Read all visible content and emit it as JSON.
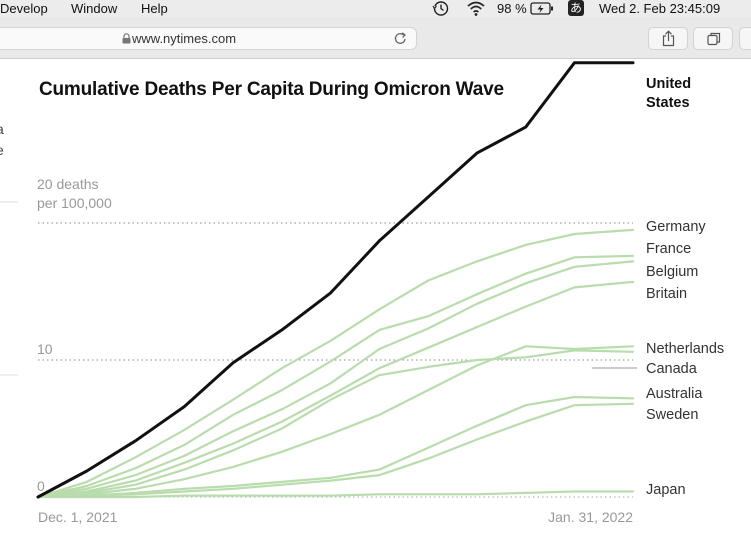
{
  "menubar": {
    "items": [
      "Develop",
      "Window",
      "Help"
    ],
    "battery_percent": "98 %",
    "input_method": "あ",
    "clock": "Wed 2. Feb  23:45:09",
    "icons": [
      "time-machine-icon",
      "wifi-icon",
      "battery-charging-icon"
    ]
  },
  "browser": {
    "url": "www.nytimes.com",
    "icons": [
      "lock-icon",
      "reload-icon",
      "share-icon",
      "tabs-icon"
    ]
  },
  "colors": {
    "us_line": "#111111",
    "other_lines": "#b9dcad",
    "gridline": "#888888"
  },
  "chart_data": {
    "type": "line",
    "title": "Cumulative Deaths Per Capita During Omicron Wave",
    "ylabel_top": [
      "20 deaths",
      "per 100,000"
    ],
    "y_ticks": [
      {
        "value": 0,
        "label": "0"
      },
      {
        "value": 10,
        "label": "10"
      },
      {
        "value": 20,
        "label": ""
      }
    ],
    "x_ticks": [
      {
        "value": "2021-12-01",
        "label": "Dec. 1, 2021"
      },
      {
        "value": "2022-01-31",
        "label": "Jan. 31, 2022"
      }
    ],
    "x": [
      "2021-12-01",
      "2021-12-06",
      "2021-12-11",
      "2021-12-16",
      "2021-12-21",
      "2021-12-26",
      "2021-12-31",
      "2022-01-05",
      "2022-01-10",
      "2022-01-15",
      "2022-01-20",
      "2022-01-25",
      "2022-01-31"
    ],
    "ylim": [
      0,
      31
    ],
    "grid": "dotted at 0, 10, 20",
    "legend": "labels at line ends (right)",
    "series": [
      {
        "name": "United States",
        "highlight": true,
        "values": [
          0,
          1.9,
          4.1,
          6.6,
          9.8,
          12.2,
          14.9,
          18.7,
          21.9,
          25.1,
          27.0,
          31.7,
          31.7
        ]
      },
      {
        "name": "Germany",
        "values": [
          0,
          1.1,
          2.9,
          4.9,
          7.1,
          9.4,
          11.4,
          13.7,
          15.8,
          17.2,
          18.4,
          19.2,
          19.5
        ]
      },
      {
        "name": "France",
        "values": [
          0,
          0.8,
          2.1,
          3.8,
          6.0,
          7.8,
          9.9,
          12.2,
          13.2,
          14.8,
          16.3,
          17.5,
          17.6
        ]
      },
      {
        "name": "Belgium",
        "values": [
          0,
          0.6,
          1.6,
          3.0,
          4.8,
          6.4,
          8.3,
          10.8,
          12.3,
          14.1,
          15.6,
          16.8,
          17.2
        ]
      },
      {
        "name": "Britain",
        "values": [
          0,
          0.4,
          1.2,
          2.5,
          3.9,
          5.5,
          7.4,
          9.4,
          10.9,
          12.4,
          13.9,
          15.3,
          15.7
        ]
      },
      {
        "name": "Netherlands",
        "values": [
          0,
          0.3,
          0.9,
          2.0,
          3.4,
          5.0,
          7.1,
          8.9,
          9.5,
          10.0,
          10.2,
          10.7,
          10.6
        ]
      },
      {
        "name": "Canada",
        "values": [
          0,
          0.2,
          0.6,
          1.3,
          2.2,
          3.3,
          4.6,
          6.0,
          7.8,
          9.6,
          11.0,
          10.8,
          11.0
        ]
      },
      {
        "name": "Australia",
        "values": [
          0,
          0.1,
          0.3,
          0.6,
          0.8,
          1.1,
          1.4,
          2.0,
          3.6,
          5.2,
          6.7,
          7.3,
          7.2
        ]
      },
      {
        "name": "Sweden",
        "values": [
          0,
          0.1,
          0.2,
          0.4,
          0.6,
          0.9,
          1.2,
          1.6,
          2.8,
          4.2,
          5.5,
          6.7,
          6.8
        ]
      },
      {
        "name": "Japan",
        "values": [
          0,
          0.0,
          0.0,
          0.1,
          0.1,
          0.1,
          0.1,
          0.2,
          0.2,
          0.2,
          0.3,
          0.4,
          0.4
        ]
      }
    ]
  }
}
